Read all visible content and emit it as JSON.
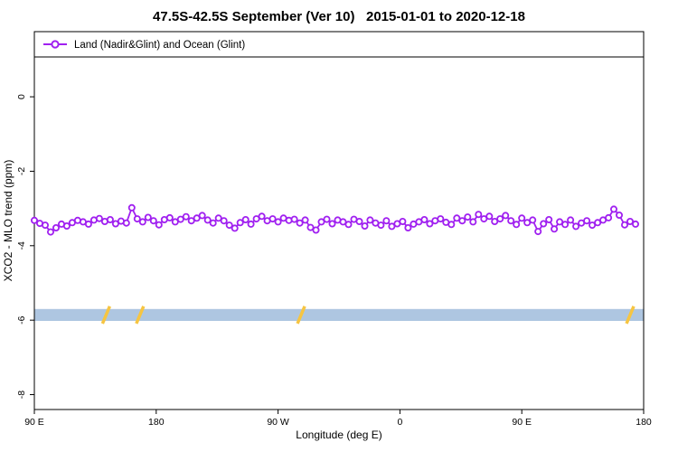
{
  "chart_data": {
    "type": "line",
    "title": "47.5S-42.5S September (Ver 10)   2015-01-01 to 2020-12-18",
    "xlabel": "Longitude (deg E)",
    "ylabel": "XCO2 - MLO trend (ppm)",
    "legend": {
      "label": "Land (Nadir&Glint) and Ocean (Glint)",
      "position": "top-left-full-width"
    },
    "series_name": "Land (Nadir&Glint) and Ocean (Glint)",
    "series_color": "#a020f0",
    "marker": "open-circle",
    "grid": false,
    "xlim": [
      90,
      540
    ],
    "ylim": [
      -8.4,
      1.75
    ],
    "x_ticks": [
      {
        "value": 90,
        "label": "90 E"
      },
      {
        "value": 180,
        "label": "180"
      },
      {
        "value": 270,
        "label": "90 W"
      },
      {
        "value": 360,
        "label": "0"
      },
      {
        "value": 450,
        "label": "90 E"
      },
      {
        "value": 540,
        "label": "180"
      }
    ],
    "y_ticks": [
      {
        "value": 0,
        "label": "0"
      },
      {
        "value": -2,
        "label": "-2"
      },
      {
        "value": -4,
        "label": "-4"
      },
      {
        "value": -6,
        "label": "-6"
      },
      {
        "value": -8,
        "label": "-8"
      }
    ],
    "band": {
      "color": "#aec6e1",
      "y_from": -5.7,
      "y_to": -6.02
    },
    "band_marks": {
      "color": "#f6c542",
      "longitudes": [
        143,
        168,
        287,
        530
      ]
    },
    "x": [
      90,
      94,
      98,
      102,
      106,
      110,
      114,
      118,
      122,
      126,
      130,
      134,
      138,
      142,
      146,
      150,
      154,
      158,
      162,
      166,
      170,
      174,
      178,
      182,
      186,
      190,
      194,
      198,
      202,
      206,
      210,
      214,
      218,
      222,
      226,
      230,
      234,
      238,
      242,
      246,
      250,
      254,
      258,
      262,
      266,
      270,
      274,
      278,
      282,
      286,
      290,
      294,
      298,
      302,
      306,
      310,
      314,
      318,
      322,
      326,
      330,
      334,
      338,
      342,
      346,
      350,
      354,
      358,
      362,
      366,
      370,
      374,
      378,
      382,
      386,
      390,
      394,
      398,
      402,
      406,
      410,
      414,
      418,
      422,
      426,
      430,
      434,
      438,
      442,
      446,
      450,
      454,
      458,
      462,
      466,
      470,
      474,
      478,
      482,
      486,
      490,
      494,
      498,
      502,
      506,
      510,
      514,
      518,
      522,
      526,
      530,
      534
    ],
    "y": [
      -3.32,
      -3.4,
      -3.45,
      -3.63,
      -3.52,
      -3.42,
      -3.47,
      -3.38,
      -3.32,
      -3.36,
      -3.42,
      -3.31,
      -3.27,
      -3.35,
      -3.3,
      -3.41,
      -3.34,
      -3.39,
      -2.98,
      -3.28,
      -3.36,
      -3.24,
      -3.33,
      -3.44,
      -3.3,
      -3.25,
      -3.36,
      -3.29,
      -3.22,
      -3.33,
      -3.26,
      -3.19,
      -3.31,
      -3.39,
      -3.26,
      -3.33,
      -3.45,
      -3.53,
      -3.38,
      -3.3,
      -3.42,
      -3.28,
      -3.21,
      -3.33,
      -3.28,
      -3.36,
      -3.26,
      -3.32,
      -3.29,
      -3.39,
      -3.31,
      -3.51,
      -3.58,
      -3.36,
      -3.29,
      -3.41,
      -3.31,
      -3.36,
      -3.43,
      -3.29,
      -3.35,
      -3.47,
      -3.31,
      -3.39,
      -3.45,
      -3.33,
      -3.48,
      -3.41,
      -3.35,
      -3.52,
      -3.42,
      -3.36,
      -3.3,
      -3.41,
      -3.33,
      -3.28,
      -3.37,
      -3.43,
      -3.26,
      -3.33,
      -3.23,
      -3.36,
      -3.16,
      -3.28,
      -3.21,
      -3.35,
      -3.28,
      -3.19,
      -3.33,
      -3.43,
      -3.26,
      -3.38,
      -3.31,
      -3.62,
      -3.41,
      -3.3,
      -3.55,
      -3.36,
      -3.43,
      -3.31,
      -3.48,
      -3.39,
      -3.33,
      -3.45,
      -3.38,
      -3.31,
      -3.25,
      -3.02,
      -3.18,
      -3.44,
      -3.35,
      -3.42
    ]
  }
}
